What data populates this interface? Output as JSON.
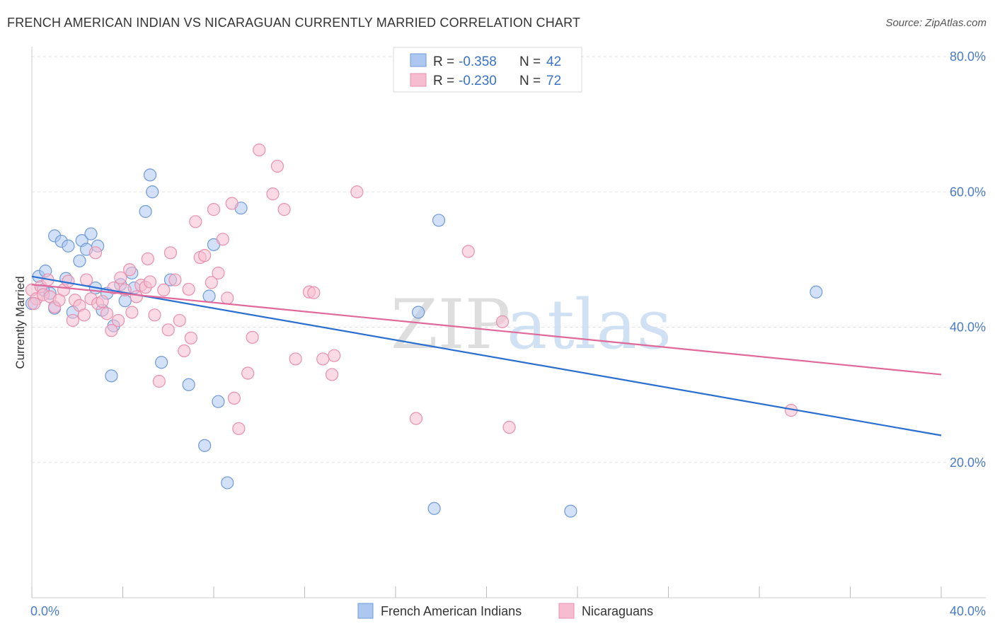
{
  "title": "FRENCH AMERICAN INDIAN VS NICARAGUAN CURRENTLY MARRIED CORRELATION CHART",
  "source": "Source: ZipAtlas.com",
  "watermark": {
    "part1": "ZIP",
    "part2": "atlas"
  },
  "colors": {
    "blue_fill": "#adc8f0",
    "blue_stroke": "#6f9ad8",
    "blue_line": "#2a6fcf",
    "pink_fill": "#f6bdd0",
    "pink_stroke": "#e890ad",
    "pink_line": "#e0699a",
    "tick_text": "#4a7cc4",
    "grid": "#e3e3e3"
  },
  "stats_box": {
    "rows": [
      {
        "r_label": "R =",
        "r_value": "-0.358",
        "n_label": "N =",
        "n_value": "42"
      },
      {
        "r_label": "R =",
        "r_value": "-0.230",
        "n_label": "N =",
        "n_value": "72"
      }
    ]
  },
  "chart_data": {
    "type": "scatter",
    "title": "FRENCH AMERICAN INDIAN VS NICARAGUAN CURRENTLY MARRIED CORRELATION CHART",
    "xlabel": "",
    "ylabel": "Currently Married",
    "xlim": [
      0,
      40
    ],
    "ylim": [
      0,
      80
    ],
    "x_tick_labels": [
      "0.0%",
      "40.0%"
    ],
    "y_ticks": [
      20,
      40,
      60,
      80
    ],
    "y_tick_labels": [
      "20.0%",
      "40.0%",
      "60.0%",
      "80.0%"
    ],
    "grid": true,
    "legend_position": "bottom",
    "series": [
      {
        "name": "French American Indians",
        "r": -0.358,
        "n": 42,
        "trend": {
          "x": [
            0,
            40
          ],
          "y": [
            47.5,
            24.0
          ]
        },
        "points": [
          [
            0.0,
            43.5
          ],
          [
            0.3,
            47.5
          ],
          [
            0.6,
            48.3
          ],
          [
            0.8,
            45.0
          ],
          [
            1.0,
            42.8
          ],
          [
            1.0,
            53.5
          ],
          [
            1.3,
            52.7
          ],
          [
            1.5,
            47.2
          ],
          [
            1.6,
            52.0
          ],
          [
            1.8,
            42.2
          ],
          [
            2.1,
            49.8
          ],
          [
            2.2,
            52.8
          ],
          [
            2.4,
            51.5
          ],
          [
            2.6,
            53.8
          ],
          [
            2.8,
            45.8
          ],
          [
            2.9,
            52.0
          ],
          [
            3.1,
            42.5
          ],
          [
            3.3,
            45.0
          ],
          [
            3.5,
            32.8
          ],
          [
            3.6,
            40.2
          ],
          [
            3.9,
            46.3
          ],
          [
            4.1,
            43.9
          ],
          [
            4.4,
            48.0
          ],
          [
            4.5,
            45.8
          ],
          [
            5.0,
            57.1
          ],
          [
            5.2,
            62.5
          ],
          [
            5.3,
            60.0
          ],
          [
            5.7,
            34.8
          ],
          [
            6.1,
            47.0
          ],
          [
            6.9,
            31.5
          ],
          [
            7.6,
            22.5
          ],
          [
            7.8,
            44.6
          ],
          [
            8.0,
            52.2
          ],
          [
            8.2,
            29.0
          ],
          [
            8.6,
            17.0
          ],
          [
            9.2,
            57.6
          ],
          [
            17.0,
            42.2
          ],
          [
            17.7,
            13.2
          ],
          [
            17.9,
            55.8
          ],
          [
            23.7,
            12.8
          ],
          [
            34.5,
            45.2
          ],
          [
            0.5,
            45.5
          ]
        ]
      },
      {
        "name": "Nicaraguans",
        "r": -0.23,
        "n": 72,
        "trend": {
          "x": [
            0,
            40
          ],
          "y": [
            46.3,
            33.0
          ]
        },
        "points": [
          [
            0.0,
            45.5
          ],
          [
            0.2,
            44.2
          ],
          [
            0.4,
            46.0
          ],
          [
            0.5,
            44.8
          ],
          [
            0.7,
            47.0
          ],
          [
            0.8,
            44.5
          ],
          [
            1.0,
            43.0
          ],
          [
            1.2,
            44.0
          ],
          [
            1.4,
            45.5
          ],
          [
            1.6,
            46.8
          ],
          [
            1.8,
            41.0
          ],
          [
            1.9,
            44.0
          ],
          [
            2.1,
            43.2
          ],
          [
            2.3,
            41.8
          ],
          [
            2.4,
            47.0
          ],
          [
            2.6,
            44.2
          ],
          [
            2.8,
            51.0
          ],
          [
            2.9,
            43.5
          ],
          [
            3.1,
            43.8
          ],
          [
            3.3,
            42.0
          ],
          [
            3.5,
            39.5
          ],
          [
            3.6,
            45.8
          ],
          [
            3.8,
            41.0
          ],
          [
            3.9,
            47.3
          ],
          [
            4.1,
            45.5
          ],
          [
            4.3,
            48.5
          ],
          [
            4.4,
            42.2
          ],
          [
            4.6,
            44.5
          ],
          [
            4.8,
            46.2
          ],
          [
            5.0,
            45.9
          ],
          [
            5.1,
            50.1
          ],
          [
            5.2,
            46.7
          ],
          [
            5.4,
            41.8
          ],
          [
            5.6,
            32.0
          ],
          [
            5.8,
            45.5
          ],
          [
            6.0,
            39.6
          ],
          [
            6.1,
            51.0
          ],
          [
            6.3,
            47.0
          ],
          [
            6.5,
            41.0
          ],
          [
            6.7,
            36.5
          ],
          [
            6.9,
            45.6
          ],
          [
            7.0,
            38.4
          ],
          [
            7.2,
            55.6
          ],
          [
            7.4,
            50.3
          ],
          [
            7.6,
            50.6
          ],
          [
            7.9,
            46.6
          ],
          [
            8.0,
            57.4
          ],
          [
            8.2,
            48.0
          ],
          [
            8.4,
            53.0
          ],
          [
            8.6,
            44.3
          ],
          [
            8.8,
            58.3
          ],
          [
            8.9,
            29.5
          ],
          [
            9.1,
            25.0
          ],
          [
            9.5,
            33.2
          ],
          [
            9.7,
            38.5
          ],
          [
            10.0,
            66.2
          ],
          [
            10.6,
            59.7
          ],
          [
            10.8,
            63.8
          ],
          [
            11.1,
            57.4
          ],
          [
            11.6,
            35.3
          ],
          [
            12.2,
            45.2
          ],
          [
            12.4,
            45.1
          ],
          [
            12.8,
            35.3
          ],
          [
            13.2,
            33.0
          ],
          [
            13.3,
            35.8
          ],
          [
            14.3,
            60.0
          ],
          [
            16.9,
            26.5
          ],
          [
            19.2,
            51.2
          ],
          [
            20.7,
            40.8
          ],
          [
            21.0,
            25.2
          ],
          [
            33.4,
            27.7
          ],
          [
            0.1,
            43.5
          ]
        ]
      }
    ]
  }
}
